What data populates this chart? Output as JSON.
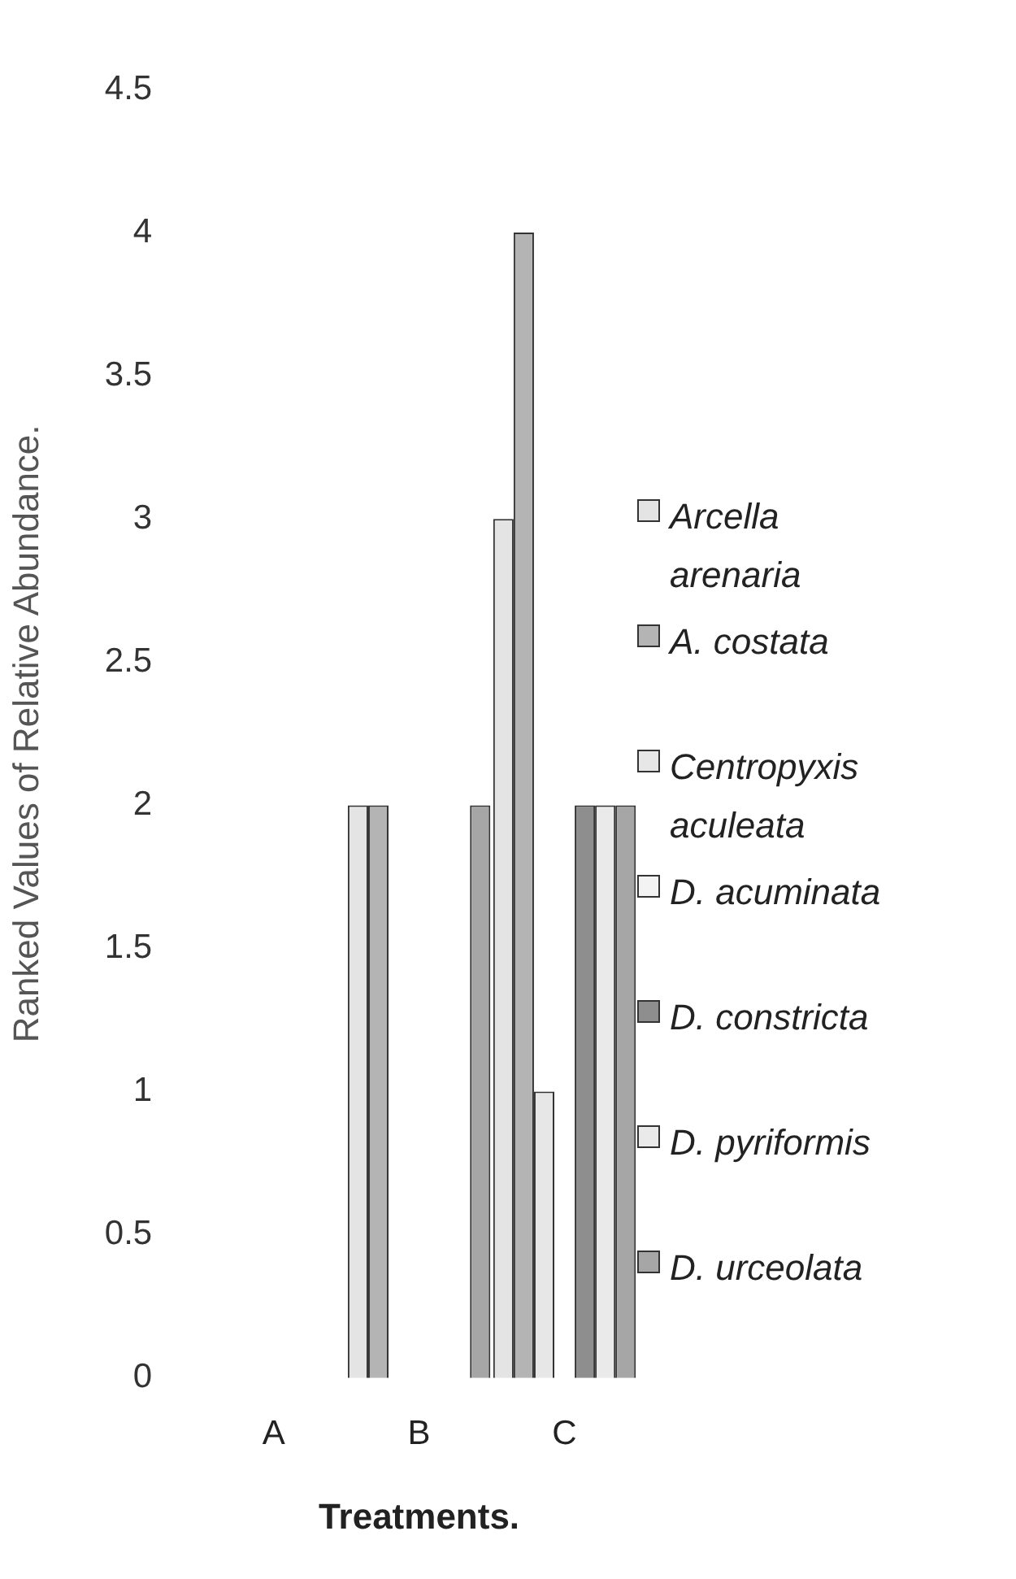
{
  "chart_data": {
    "type": "bar",
    "xlabel": "Treatments.",
    "ylabel": "Ranked Values of Relative Abundance.",
    "categories": [
      "A",
      "B",
      "C"
    ],
    "series": [
      {
        "name": "Arcella arenaria",
        "color": "#e4e4e4",
        "values": [
          0,
          2,
          3
        ]
      },
      {
        "name": "A. costata",
        "color": "#b4b4b4",
        "values": [
          0,
          2,
          4
        ]
      },
      {
        "name": "Centropyxis aculeata",
        "color": "#e7e7e7",
        "values": [
          0,
          0,
          1
        ]
      },
      {
        "name": "D. acuminata",
        "color": "#f3f3f3",
        "values": [
          0,
          0,
          0
        ]
      },
      {
        "name": "D. constricta",
        "color": "#8e8e8e",
        "values": [
          0,
          0,
          2
        ]
      },
      {
        "name": "D. pyriformis",
        "color": "#eaeaea",
        "values": [
          0,
          0,
          2
        ]
      },
      {
        "name": "D. urceolata",
        "color": "#a6a6a6",
        "values": [
          0,
          2,
          2
        ]
      }
    ],
    "ylim": [
      0,
      4.5
    ],
    "yticks": [
      0,
      0.5,
      1,
      1.5,
      2,
      2.5,
      3,
      3.5,
      4,
      4.5
    ],
    "grid": false,
    "legend": "right"
  }
}
